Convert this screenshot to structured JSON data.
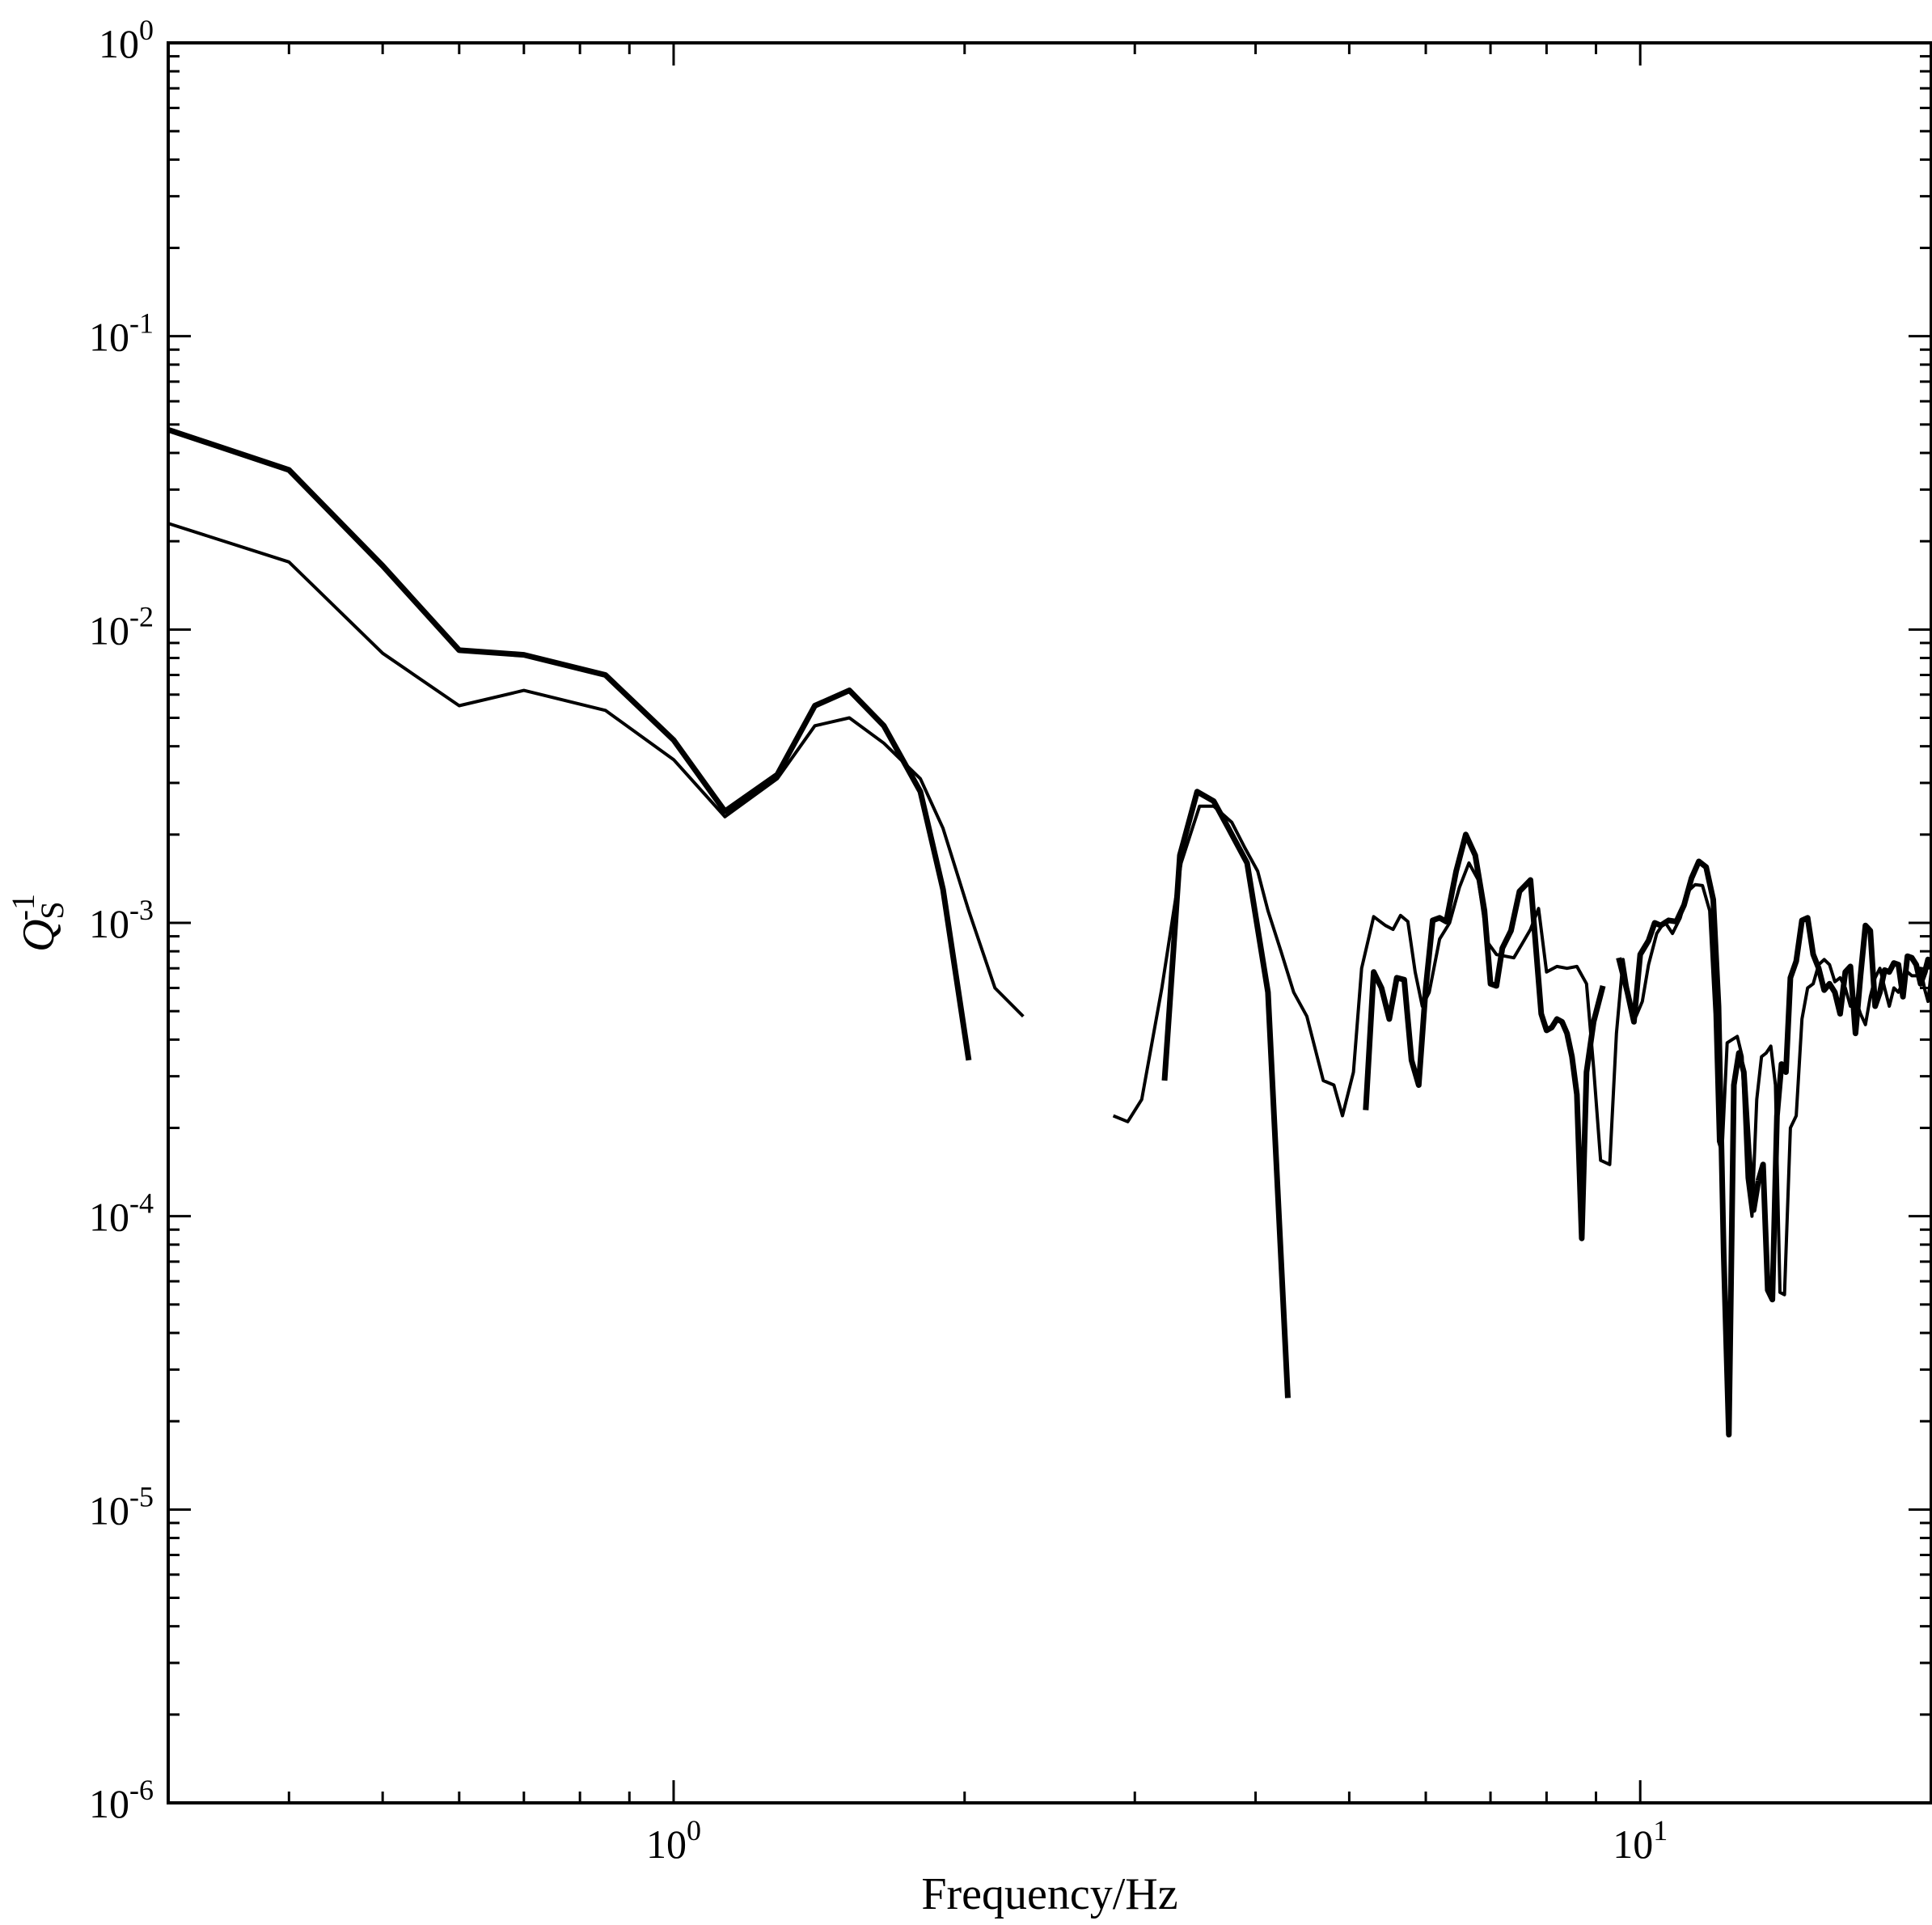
{
  "chart_data": {
    "type": "line",
    "title": "",
    "xlabel": "Frequency/Hz",
    "ylabel": {
      "base": "Q",
      "subscript": "S",
      "superscript": "-1"
    },
    "x_scale": "log",
    "y_scale": "log",
    "xlim": [
      0.3,
      20.0
    ],
    "ylim": [
      1e-06,
      1.0
    ],
    "grid": false,
    "legend": "none",
    "line_color": "#000000",
    "x_ticks": [
      {
        "value": 1,
        "base": "10",
        "exponent": "0"
      },
      {
        "value": 10,
        "base": "10",
        "exponent": "1"
      }
    ],
    "y_ticks": [
      {
        "value": 1,
        "base": "10",
        "exponent": "0"
      },
      {
        "value": 0.1,
        "base": "10",
        "exponent": "-1"
      },
      {
        "value": 0.01,
        "base": "10",
        "exponent": "-2"
      },
      {
        "value": 0.001,
        "base": "10",
        "exponent": "-3"
      },
      {
        "value": 0.0001,
        "base": "10",
        "exponent": "-4"
      },
      {
        "value": 1e-05,
        "base": "10",
        "exponent": "-5"
      },
      {
        "value": 1e-06,
        "base": "10",
        "exponent": "-6"
      }
    ],
    "series": [
      {
        "line": "thick",
        "segments": [
          {
            "x": [
              0.3,
              0.4,
              0.5,
              0.6,
              0.7,
              0.85,
              1.0,
              1.13,
              1.28,
              1.4,
              1.52,
              1.65,
              1.8,
              1.9,
              2.02
            ],
            "y": [
              0.048,
              0.035,
              0.0165,
              0.0085,
              0.0082,
              0.007,
              0.0042,
              0.0024,
              0.0032,
              0.0055,
              0.0062,
              0.0047,
              0.0028,
              0.0013,
              0.00034
            ]
          },
          {
            "x": [
              3.22,
              3.34,
              3.48,
              3.62,
              3.75,
              3.92,
              4.12,
              4.32
            ],
            "y": [
              0.00029,
              0.0017,
              0.0028,
              0.0026,
              0.0021,
              0.0016,
              0.00058,
              2.4e-05
            ]
          },
          {
            "x": [
              5.2,
              5.3,
              5.4,
              5.5,
              5.6,
              5.7,
              5.8,
              5.9,
              6.0,
              6.1,
              6.2,
              6.3,
              6.45,
              6.6,
              6.75,
              6.9,
              7.0,
              7.1,
              7.2,
              7.35,
              7.5,
              7.7,
              7.9,
              8.0,
              8.1,
              8.2,
              8.3,
              8.4,
              8.5,
              8.6,
              8.7,
              8.8,
              8.95,
              9.15
            ],
            "y": [
              0.00023,
              0.00068,
              0.0006,
              0.00047,
              0.00065,
              0.00064,
              0.00034,
              0.00028,
              0.0006,
              0.00102,
              0.00104,
              0.00101,
              0.0015,
              0.002,
              0.0017,
              0.0011,
              0.00062,
              0.00061,
              0.00082,
              0.00094,
              0.00128,
              0.0014,
              0.00049,
              0.00043,
              0.00044,
              0.00047,
              0.00046,
              0.00042,
              0.00035,
              0.00026,
              8.4e-05,
              0.00031,
              0.00046,
              0.00061
            ]
          },
          {
            "x": [
              9.5,
              9.7,
              9.85,
              10.0,
              10.2,
              10.35,
              10.5,
              10.7,
              10.9,
              11.1,
              11.3,
              11.5,
              11.7,
              11.9,
              12.05,
              12.2,
              12.35,
              12.5,
              12.65,
              12.8,
              12.95,
              13.1,
              13.25
            ],
            "y": [
              0.00076,
              0.00058,
              0.00046,
              0.00078,
              0.00087,
              0.001,
              0.00098,
              0.00102,
              0.00101,
              0.00115,
              0.00142,
              0.00162,
              0.00155,
              0.0012,
              0.00052,
              7.5e-05,
              1.8e-05,
              0.00028,
              0.00036,
              0.00031,
              0.000165,
              0.000105,
              0.000132
            ]
          },
          {
            "x": [
              13.25,
              13.4,
              13.55,
              13.7,
              13.85,
              14.0,
              14.15,
              14.3,
              14.5,
              14.7,
              14.9,
              15.1,
              15.3,
              15.5,
              15.7,
              15.9,
              16.1,
              16.3,
              16.5,
              16.7,
              16.9,
              17.1,
              17.3,
              17.5,
              17.7,
              17.9,
              18.1,
              18.3,
              18.5,
              18.7,
              18.9,
              19.1,
              19.3,
              19.5,
              19.7,
              19.85,
              20.0
            ],
            "y": [
              0.000132,
              0.00015,
              5.6e-05,
              5.2e-05,
              0.00022,
              0.00033,
              0.00031,
              0.00065,
              0.00074,
              0.00102,
              0.00104,
              0.00078,
              0.0007,
              0.00059,
              0.00062,
              0.00058,
              0.00049,
              0.00068,
              0.00071,
              0.00042,
              0.00066,
              0.00098,
              0.00094,
              0.00052,
              0.00058,
              0.00069,
              0.00068,
              0.00073,
              0.00072,
              0.00056,
              0.00077,
              0.00076,
              0.00072,
              0.00062,
              0.00068,
              0.00075,
              0.00071
            ]
          }
        ]
      },
      {
        "line": "thin",
        "segments": [
          {
            "x": [
              0.3,
              0.4,
              0.5,
              0.6,
              0.7,
              0.85,
              1.0,
              1.13,
              1.28,
              1.4,
              1.52,
              1.65,
              1.8,
              1.9,
              2.02,
              2.15,
              2.3
            ],
            "y": [
              0.023,
              0.017,
              0.0083,
              0.0055,
              0.0062,
              0.0053,
              0.0036,
              0.0023,
              0.0031,
              0.0047,
              0.005,
              0.0041,
              0.0031,
              0.0021,
              0.0011,
              0.0006,
              0.00048
            ]
          },
          {
            "x": [
              2.85,
              2.95,
              3.05,
              3.2,
              3.35,
              3.5,
              3.62,
              3.78,
              3.9,
              4.02,
              4.12,
              4.25,
              4.38,
              4.52,
              4.7,
              4.82,
              4.92,
              5.05,
              5.15,
              5.3,
              5.45,
              5.55,
              5.65,
              5.75,
              5.85,
              5.95,
              6.05,
              6.2,
              6.35,
              6.5,
              6.65,
              6.8,
              6.95,
              7.1,
              7.25,
              7.4,
              7.55,
              7.7,
              7.85,
              8.0,
              8.2,
              8.4,
              8.6,
              8.8,
              8.95,
              9.1,
              9.3,
              9.45,
              9.6,
              9.75,
              9.9,
              10.05,
              10.2,
              10.4,
              10.6,
              10.8,
              11.0,
              11.2,
              11.4,
              11.6,
              11.8,
              11.95,
              12.05,
              12.15,
              12.3,
              12.45,
              12.6,
              12.75,
              12.9,
              13.05,
              13.2,
              13.35,
              13.5,
              13.65,
              13.8,
              13.95,
              14.1,
              14.3,
              14.5,
              14.7,
              14.9,
              15.1,
              15.3,
              15.5,
              15.7,
              15.9,
              16.1,
              16.3,
              16.5,
              16.7,
              16.9,
              17.1,
              17.3,
              17.5,
              17.7,
              17.9,
              18.1,
              18.3,
              18.5,
              18.7,
              18.9,
              19.1,
              19.3,
              19.5,
              19.7,
              19.85,
              20.0
            ],
            "y": [
              0.00022,
              0.00021,
              0.00025,
              0.0006,
              0.0016,
              0.0025,
              0.0025,
              0.0022,
              0.0018,
              0.0015,
              0.0011,
              0.0008,
              0.00058,
              0.00048,
              0.00029,
              0.00028,
              0.00022,
              0.00031,
              0.0007,
              0.00105,
              0.00098,
              0.00095,
              0.00106,
              0.00101,
              0.00068,
              0.00052,
              0.00058,
              0.00088,
              0.001,
              0.00132,
              0.0016,
              0.0014,
              0.00086,
              0.00078,
              0.00077,
              0.00076,
              0.00085,
              0.00095,
              0.00112,
              0.00068,
              0.00071,
              0.0007,
              0.00071,
              0.00062,
              0.00032,
              0.000155,
              0.00015,
              0.00042,
              0.00075,
              0.00054,
              0.00048,
              0.00054,
              0.00072,
              0.00092,
              0.00101,
              0.00092,
              0.00104,
              0.00128,
              0.00135,
              0.00134,
              0.0011,
              0.00049,
              0.00018,
              0.000165,
              0.00039,
              0.0004,
              0.00041,
              0.00035,
              0.000135,
              0.0001,
              0.00025,
              0.00035,
              0.00036,
              0.00038,
              0.00028,
              5.5e-05,
              5.4e-05,
              0.0002,
              0.00022,
              0.00047,
              0.0006,
              0.00062,
              0.00072,
              0.00075,
              0.00072,
              0.00063,
              0.00065,
              0.0006,
              0.00052,
              0.00055,
              0.00049,
              0.00045,
              0.00056,
              0.00065,
              0.0007,
              0.0006,
              0.00052,
              0.0006,
              0.00058,
              0.00063,
              0.00068,
              0.00066,
              0.00066,
              0.0007,
              0.00059,
              0.00054,
              0.00068
            ]
          }
        ]
      }
    ]
  }
}
